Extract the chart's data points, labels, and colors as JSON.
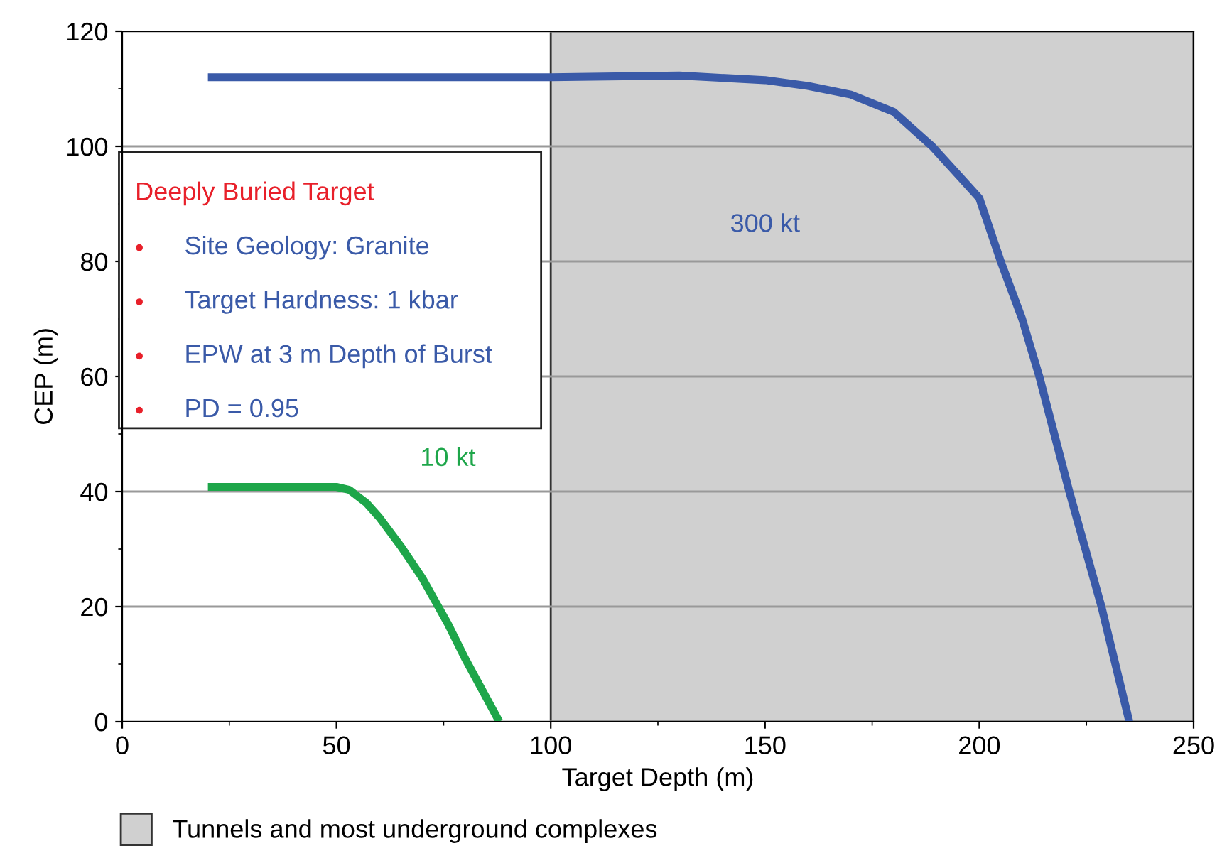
{
  "chart_data": {
    "type": "line",
    "xlabel": "Target Depth (m)",
    "ylabel": "CEP (m)",
    "xlim": [
      0,
      250
    ],
    "xticks": [
      0,
      50,
      100,
      150,
      200,
      250
    ],
    "ylim": [
      0,
      120
    ],
    "yticks": [
      0,
      20,
      40,
      60,
      80,
      100,
      120
    ],
    "grid": "y",
    "legend": "bottom",
    "marker": "none",
    "line_style": "solid",
    "series": [
      {
        "name": "10 kt",
        "color": "#1ea64a",
        "x": [
          20,
          30,
          40,
          50,
          53,
          57,
          60,
          65,
          70,
          73,
          76,
          80,
          84,
          88
        ],
        "values": [
          40.8,
          40.8,
          40.8,
          40.8,
          40.3,
          38,
          35.5,
          30.5,
          25,
          21,
          17,
          11,
          5.5,
          0
        ]
      },
      {
        "name": "300 kt",
        "color": "#3a5aa8",
        "x": [
          20,
          60,
          100,
          130,
          150,
          160,
          170,
          180,
          189,
          200,
          205,
          210,
          214,
          221,
          228.5,
          235
        ],
        "values": [
          112,
          112,
          112,
          112.3,
          111.5,
          110.5,
          109,
          106,
          100,
          91,
          80,
          70,
          60,
          40,
          20,
          0
        ]
      }
    ],
    "bands": [
      {
        "axis": "x",
        "from": 100,
        "to": 250,
        "label": "Tunnels and most underground complexes",
        "color": "#d0d0d0"
      }
    ],
    "annotations": [
      "Deeply Buried Target",
      "Site Geology: Granite",
      "Target Hardness: 1 kbar",
      "EPW at 3 m Depth of Burst",
      "PD = 0.95"
    ]
  }
}
